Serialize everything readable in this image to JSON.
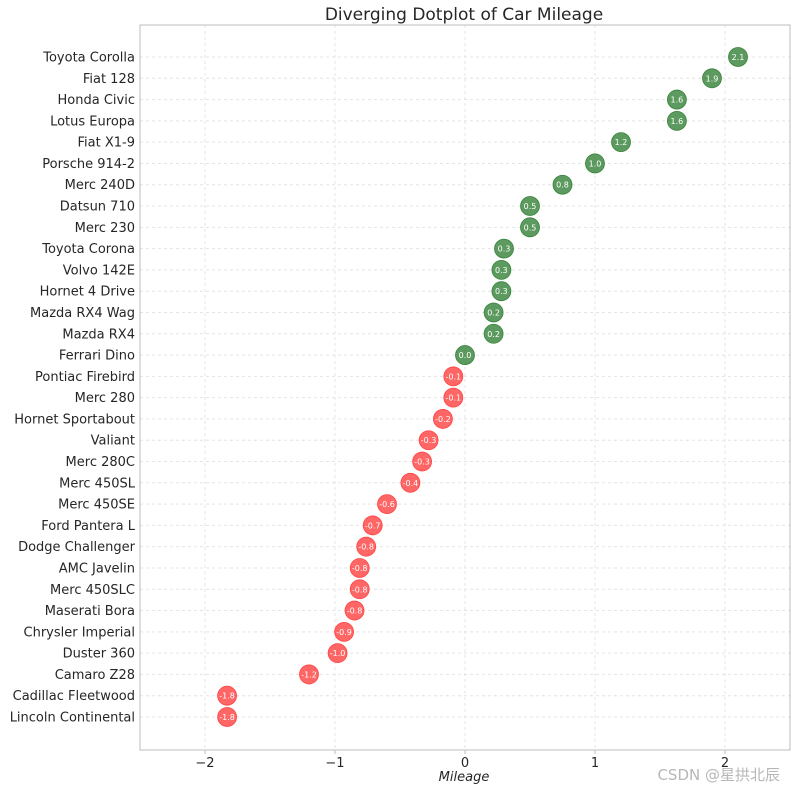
{
  "chart_data": {
    "type": "scatter",
    "title": "Diverging Dotplot of Car Mileage",
    "xlabel": "Mileage",
    "ylabel": "",
    "xlim": [
      -2.5,
      2.5
    ],
    "xticks": [
      -2,
      -1,
      0,
      1,
      2
    ],
    "xtick_labels": [
      "−2",
      "−1",
      "0",
      "1",
      "2"
    ],
    "grid": true,
    "colors": {
      "positive": "#2e7d32",
      "negative": "#ff3b3b"
    },
    "points": [
      {
        "car": "Toyota Corolla",
        "value": 2.1,
        "label": "2.1"
      },
      {
        "car": "Fiat 128",
        "value": 1.9,
        "label": "1.9"
      },
      {
        "car": "Honda Civic",
        "value": 1.63,
        "label": "1.6"
      },
      {
        "car": "Lotus Europa",
        "value": 1.63,
        "label": "1.6"
      },
      {
        "car": "Fiat X1-9",
        "value": 1.2,
        "label": "1.2"
      },
      {
        "car": "Porsche 914-2",
        "value": 1.0,
        "label": "1.0"
      },
      {
        "car": "Merc 240D",
        "value": 0.75,
        "label": "0.8"
      },
      {
        "car": "Datsun 710",
        "value": 0.5,
        "label": "0.5"
      },
      {
        "car": "Merc 230",
        "value": 0.5,
        "label": "0.5"
      },
      {
        "car": "Toyota Corona",
        "value": 0.3,
        "label": "0.3"
      },
      {
        "car": "Volvo 142E",
        "value": 0.28,
        "label": "0.3"
      },
      {
        "car": "Hornet 4 Drive",
        "value": 0.28,
        "label": "0.3"
      },
      {
        "car": "Mazda RX4 Wag",
        "value": 0.22,
        "label": "0.2"
      },
      {
        "car": "Mazda RX4",
        "value": 0.22,
        "label": "0.2"
      },
      {
        "car": "Ferrari Dino",
        "value": 0.0,
        "label": "0.0"
      },
      {
        "car": "Pontiac Firebird",
        "value": -0.09,
        "label": "-0.1"
      },
      {
        "car": "Merc 280",
        "value": -0.09,
        "label": "-0.1"
      },
      {
        "car": "Hornet Sportabout",
        "value": -0.17,
        "label": "-0.2"
      },
      {
        "car": "Valiant",
        "value": -0.28,
        "label": "-0.3"
      },
      {
        "car": "Merc 280C",
        "value": -0.33,
        "label": "-0.3"
      },
      {
        "car": "Merc 450SL",
        "value": -0.42,
        "label": "-0.4"
      },
      {
        "car": "Merc 450SE",
        "value": -0.6,
        "label": "-0.6"
      },
      {
        "car": "Ford Pantera L",
        "value": -0.71,
        "label": "-0.7"
      },
      {
        "car": "Dodge Challenger",
        "value": -0.76,
        "label": "-0.8"
      },
      {
        "car": "AMC Javelin",
        "value": -0.81,
        "label": "-0.8"
      },
      {
        "car": "Merc 450SLC",
        "value": -0.81,
        "label": "-0.8"
      },
      {
        "car": "Maserati Bora",
        "value": -0.85,
        "label": "-0.8"
      },
      {
        "car": "Chrysler Imperial",
        "value": -0.93,
        "label": "-0.9"
      },
      {
        "car": "Duster 360",
        "value": -0.98,
        "label": "-1.0"
      },
      {
        "car": "Camaro Z28",
        "value": -1.2,
        "label": "-1.2"
      },
      {
        "car": "Cadillac Fleetwood",
        "value": -1.83,
        "label": "-1.8"
      },
      {
        "car": "Lincoln Continental",
        "value": -1.83,
        "label": "-1.8"
      }
    ]
  },
  "watermark": "CSDN @星拱北辰"
}
